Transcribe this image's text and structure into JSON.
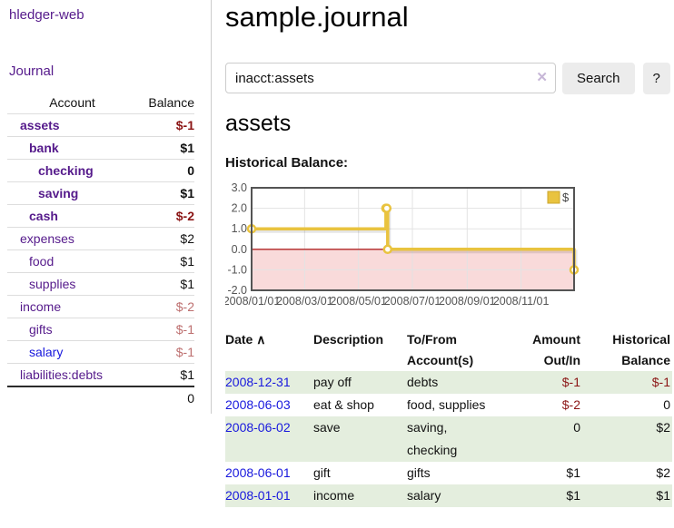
{
  "colors": {
    "link_purple": "#551a8b",
    "link_blue": "#1818dd",
    "negative_strong": "#8b1515",
    "negative_soft": "#bd6f6f",
    "row_stripe_green": "#e4eede",
    "divider_gray": "#cccccc",
    "button_gray": "#ececec",
    "series_gold": "#e9c33f"
  },
  "sidebar": {
    "brand": "hledger-web",
    "nav_journal": "Journal",
    "accounts": {
      "account_header": "Account",
      "balance_header": "Balance",
      "rows": [
        {
          "name": "assets",
          "depth": 1,
          "bold": true,
          "balance": "$-1",
          "neg": "strong"
        },
        {
          "name": "bank",
          "depth": 2,
          "bold": true,
          "balance": "$1"
        },
        {
          "name": "checking",
          "depth": 3,
          "bold": true,
          "balance": "0"
        },
        {
          "name": "saving",
          "depth": 3,
          "bold": true,
          "balance": "$1"
        },
        {
          "name": "cash",
          "depth": 2,
          "bold": true,
          "balance": "$-2",
          "neg": "strong"
        },
        {
          "name": "expenses",
          "depth": 1,
          "bold": false,
          "balance": "$2"
        },
        {
          "name": "food",
          "depth": 2,
          "bold": false,
          "balance": "$1"
        },
        {
          "name": "supplies",
          "depth": 2,
          "bold": false,
          "balance": "$1"
        },
        {
          "name": "income",
          "depth": 1,
          "bold": false,
          "balance": "$-2",
          "neg": "soft"
        },
        {
          "name": "gifts",
          "depth": 2,
          "bold": false,
          "balance": "$-1",
          "neg": "soft"
        },
        {
          "name": "salary",
          "depth": 2,
          "bold": false,
          "balance": "$-1",
          "neg": "soft",
          "blue": true
        },
        {
          "name": "liabilities:debts",
          "depth": 1,
          "bold": false,
          "balance": "$1"
        }
      ],
      "total": "0"
    }
  },
  "header": {
    "title": "sample.journal"
  },
  "search": {
    "query": "inacct:assets",
    "clear_icon": "✕",
    "button_label": "Search",
    "help_label": "?"
  },
  "account_page": {
    "heading": "assets",
    "chart_title": "Historical Balance:"
  },
  "chart_data": {
    "type": "line",
    "title": "Historical Balance:",
    "step": true,
    "x_range": [
      "2008-01-01",
      "2008-12-31"
    ],
    "ylim": [
      -2,
      3
    ],
    "y_ticks": [
      "3.0",
      "2.0",
      "1.0",
      "0.0",
      "-1.0",
      "-2.0"
    ],
    "x_ticks": [
      "2008/01/01",
      "2008/03/01",
      "2008/05/01",
      "2008/07/01",
      "2008/09/01",
      "2008/11/01"
    ],
    "series": [
      {
        "name": "$",
        "color": "#e9c33f",
        "points": [
          [
            "2008-01-01",
            1
          ],
          [
            "2008-06-01",
            2
          ],
          [
            "2008-06-02",
            2
          ],
          [
            "2008-06-03",
            0
          ],
          [
            "2008-12-31",
            -1
          ]
        ]
      }
    ],
    "legend": {
      "label": "$",
      "position": "top-right"
    },
    "grid": true,
    "grid_color": "#e3e3e3",
    "negative_fill": "#f9dada",
    "zero_line_color": "#b22525",
    "border_color": "#545454",
    "tick_color": "#545454"
  },
  "register": {
    "headers": {
      "date": "Date",
      "sort_icon": "∧",
      "description": [
        "Description"
      ],
      "accounts": [
        "To/From",
        "Account(s)"
      ],
      "amount": [
        "Amount",
        "Out/In"
      ],
      "balance": [
        "Historical",
        "Balance"
      ]
    },
    "rows": [
      {
        "date": "2008-12-31",
        "description": "pay off",
        "accounts": [
          "debts"
        ],
        "amount": "$-1",
        "amount_neg": true,
        "balance": "$-1",
        "balance_neg": true
      },
      {
        "date": "2008-06-03",
        "description": "eat & shop",
        "accounts": [
          "food, supplies"
        ],
        "amount": "$-2",
        "amount_neg": true,
        "balance": "0",
        "balance_neg": false
      },
      {
        "date": "2008-06-02",
        "description": "save",
        "accounts": [
          "saving,",
          "checking"
        ],
        "amount": "0",
        "amount_neg": false,
        "balance": "$2",
        "balance_neg": false
      },
      {
        "date": "2008-06-01",
        "description": "gift",
        "accounts": [
          "gifts"
        ],
        "amount": "$1",
        "amount_neg": false,
        "balance": "$2",
        "balance_neg": false
      },
      {
        "date": "2008-01-01",
        "description": "income",
        "accounts": [
          "salary"
        ],
        "amount": "$1",
        "amount_neg": false,
        "balance": "$1",
        "balance_neg": false
      }
    ]
  }
}
